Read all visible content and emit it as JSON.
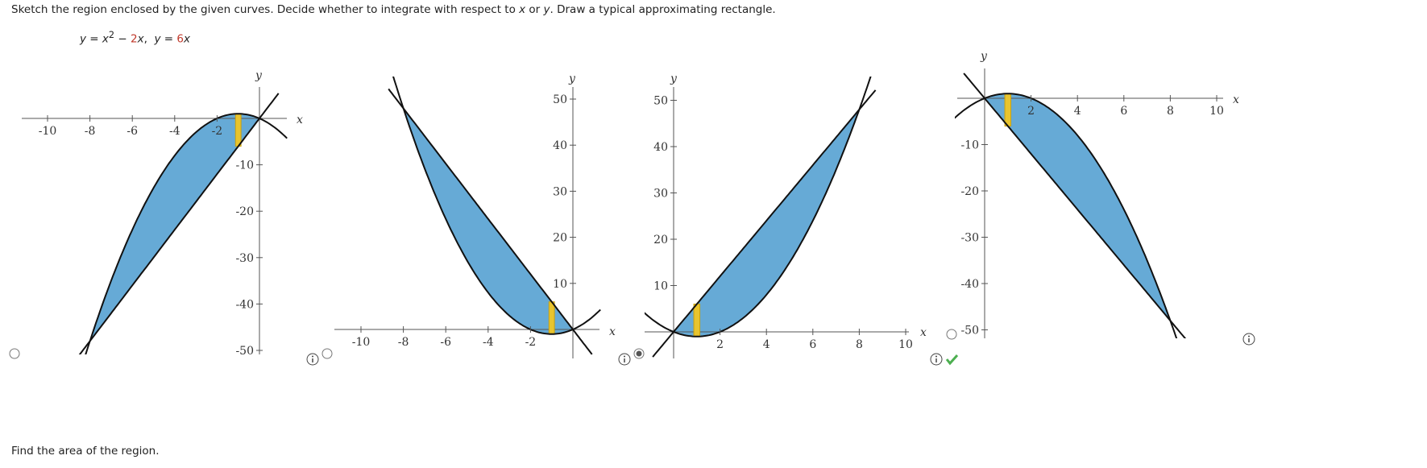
{
  "question": {
    "parts": [
      "Sketch the region enclosed by the given curves. Decide whether to integrate with respect to ",
      "x",
      " or ",
      "y",
      ". Draw a typical approximating rectangle."
    ]
  },
  "equation": {
    "parts": [
      "y",
      " = ",
      "x",
      "2",
      " − ",
      "2",
      "x",
      ",  ",
      "y",
      " = ",
      "6",
      "x"
    ]
  },
  "graphs": [
    {
      "x_label": "x",
      "y_label": "y",
      "xticks": [
        -10,
        -8,
        -6,
        -4,
        -2
      ],
      "yticks": [
        -10,
        -20,
        -30,
        -40,
        -50
      ],
      "selected": false,
      "correct": false
    },
    {
      "x_label": "x",
      "y_label": "y",
      "xticks": [
        -10,
        -8,
        -6,
        -4,
        -2
      ],
      "yticks": [
        10,
        20,
        30,
        40,
        50
      ],
      "selected": false,
      "correct": false
    },
    {
      "x_label": "x",
      "y_label": "y",
      "xticks": [
        2,
        4,
        6,
        8,
        10
      ],
      "yticks": [
        10,
        20,
        30,
        40,
        50
      ],
      "selected": true,
      "correct": true
    },
    {
      "x_label": "x",
      "y_label": "y",
      "xticks": [
        2,
        4,
        6,
        8,
        10
      ],
      "yticks": [
        -10,
        -20,
        -30,
        -40,
        -50
      ],
      "selected": false,
      "correct": false
    }
  ],
  "footer": {
    "text": "Find the area of the region."
  }
}
